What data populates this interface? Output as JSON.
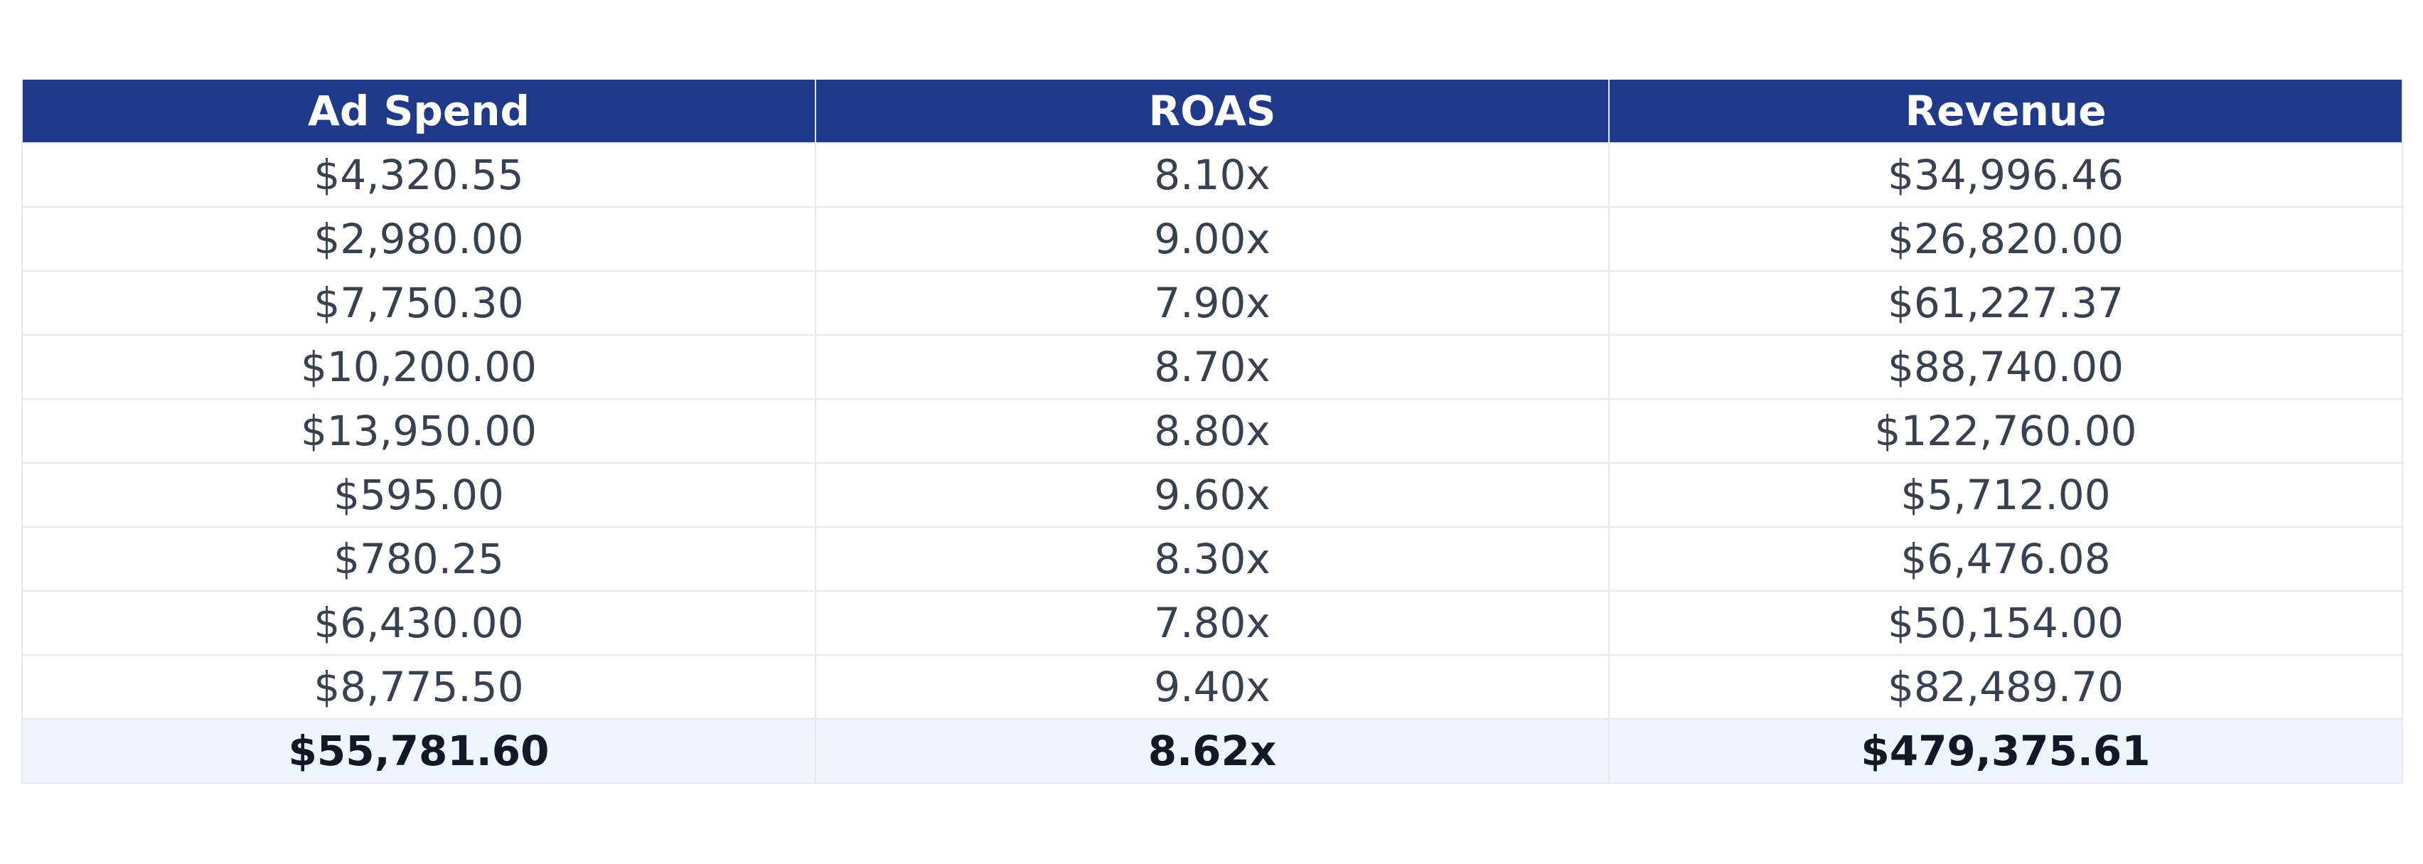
{
  "colors": {
    "header_bg": "#1f3a8a",
    "header_text": "#ffffff",
    "cell_text": "#374151",
    "grid_line": "#e5e7eb",
    "total_bg": "#eff6ff",
    "total_text": "#111827"
  },
  "chart_data": {
    "type": "table",
    "columns": [
      "Ad Spend",
      "ROAS",
      "Revenue"
    ],
    "rows": [
      [
        "$4,320.55",
        "8.10x",
        "$34,996.46"
      ],
      [
        "$2,980.00",
        "9.00x",
        "$26,820.00"
      ],
      [
        "$7,750.30",
        "7.90x",
        "$61,227.37"
      ],
      [
        "$10,200.00",
        "8.70x",
        "$88,740.00"
      ],
      [
        "$13,950.00",
        "8.80x",
        "$122,760.00"
      ],
      [
        "$595.00",
        "9.60x",
        "$5,712.00"
      ],
      [
        "$780.25",
        "8.30x",
        "$6,476.08"
      ],
      [
        "$6,430.00",
        "7.80x",
        "$50,154.00"
      ],
      [
        "$8,775.50",
        "9.40x",
        "$82,489.70"
      ]
    ],
    "total": [
      "$55,781.60",
      "8.62x",
      "$479,375.61"
    ]
  }
}
